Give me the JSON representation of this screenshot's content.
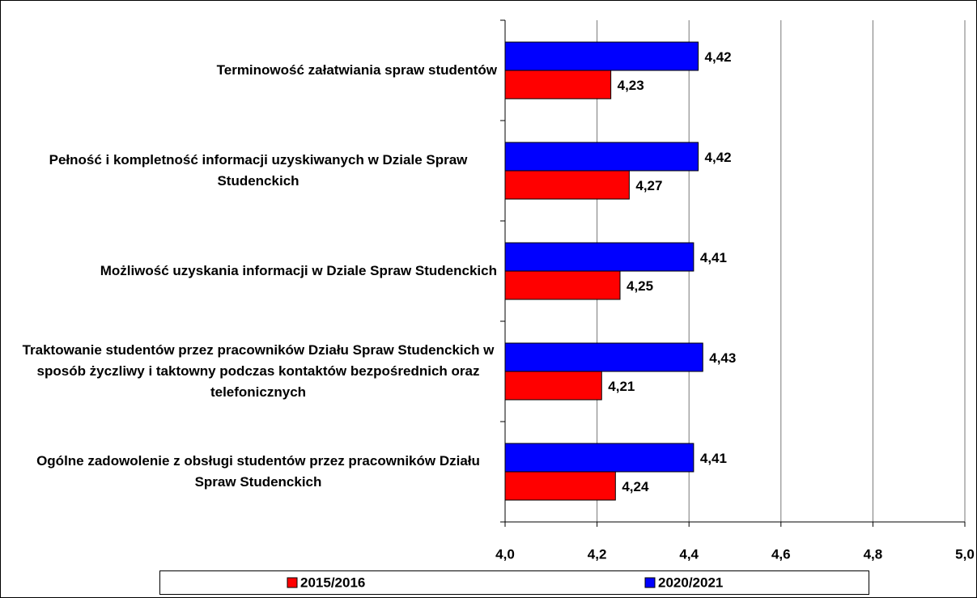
{
  "chart_data": {
    "type": "hbar",
    "categories": [
      "Terminowość załatwiania spraw studentów",
      "Pełność i kompletność informacji uzyskiwanych w Dziale Spraw Studenckich",
      "Możliwość uzyskania informacji w Dziale Spraw Studenckich",
      "Traktowanie studentów przez pracowników Działu Spraw Studenckich w sposób życzliwy i taktowny podczas kontaktów bezpośrednich oraz telefonicznych",
      "Ogólne zadowolenie z obsługi studentów przez pracowników Działu Spraw Studenckich"
    ],
    "series": [
      {
        "name": "2015/2016",
        "color": "#ff0000",
        "values": [
          4.23,
          4.27,
          4.25,
          4.21,
          4.24
        ],
        "value_labels": [
          "4,23",
          "4,27",
          "4,25",
          "4,21",
          "4,24"
        ]
      },
      {
        "name": "2020/2021",
        "color": "#0000ff",
        "values": [
          4.42,
          4.42,
          4.41,
          4.43,
          4.41
        ],
        "value_labels": [
          "4,42",
          "4,42",
          "4,41",
          "4,43",
          "4,41"
        ]
      }
    ],
    "xlim": [
      4.0,
      5.0
    ],
    "xticks": [
      {
        "value": 4.0,
        "label": "4,0"
      },
      {
        "value": 4.2,
        "label": "4,2"
      },
      {
        "value": 4.4,
        "label": "4,4"
      },
      {
        "value": 4.6,
        "label": "4,6"
      },
      {
        "value": 4.8,
        "label": "4,8"
      },
      {
        "value": 5.0,
        "label": "5,0"
      }
    ],
    "grid": true,
    "legend": "bottom"
  }
}
